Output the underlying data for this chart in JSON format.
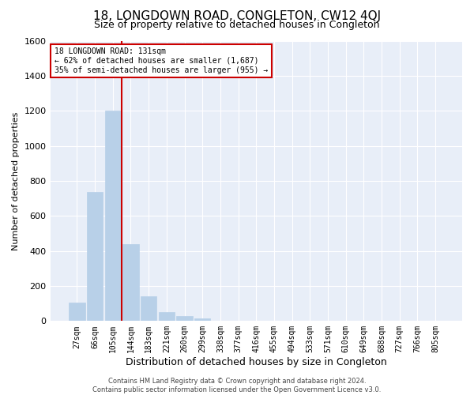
{
  "title": "18, LONGDOWN ROAD, CONGLETON, CW12 4QJ",
  "subtitle": "Size of property relative to detached houses in Congleton",
  "xlabel": "Distribution of detached houses by size in Congleton",
  "ylabel": "Number of detached properties",
  "bar_labels": [
    "27sqm",
    "66sqm",
    "105sqm",
    "144sqm",
    "183sqm",
    "221sqm",
    "260sqm",
    "299sqm",
    "338sqm",
    "377sqm",
    "416sqm",
    "455sqm",
    "494sqm",
    "533sqm",
    "571sqm",
    "610sqm",
    "649sqm",
    "688sqm",
    "727sqm",
    "766sqm",
    "805sqm"
  ],
  "bar_values": [
    105,
    735,
    1200,
    440,
    140,
    50,
    30,
    15,
    0,
    0,
    0,
    0,
    0,
    0,
    0,
    0,
    0,
    0,
    0,
    0,
    0
  ],
  "bar_color": "#b8d0e8",
  "vline_x": 2.5,
  "vline_color": "#cc0000",
  "ylim": [
    0,
    1600
  ],
  "yticks": [
    0,
    200,
    400,
    600,
    800,
    1000,
    1200,
    1400,
    1600
  ],
  "annotation_text": "18 LONGDOWN ROAD: 131sqm\n← 62% of detached houses are smaller (1,687)\n35% of semi-detached houses are larger (955) →",
  "annotation_box_color": "#ffffff",
  "annotation_box_edge": "#cc0000",
  "footer_line1": "Contains HM Land Registry data © Crown copyright and database right 2024.",
  "footer_line2": "Contains public sector information licensed under the Open Government Licence v3.0.",
  "fig_background": "#ffffff",
  "plot_bg_color": "#e8eef8",
  "grid_color": "#ffffff",
  "title_fontsize": 11,
  "subtitle_fontsize": 9,
  "xlabel_fontsize": 9,
  "ylabel_fontsize": 8,
  "tick_fontsize": 7,
  "annotation_fontsize": 7,
  "footer_fontsize": 6
}
